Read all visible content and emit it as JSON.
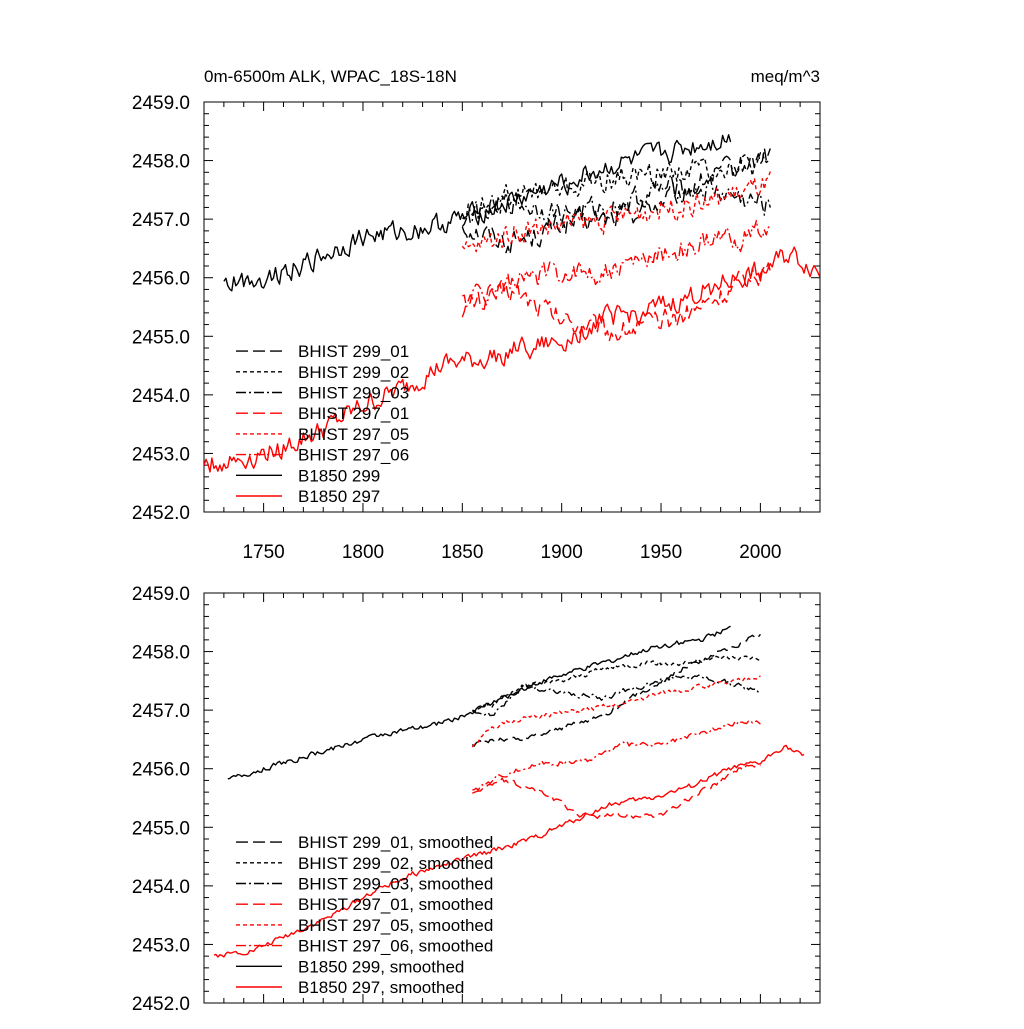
{
  "chart_data": [
    {
      "type": "line",
      "title": "0m-6500m ALK, WPAC_18S-18N",
      "units_label": "meq/m^3",
      "xlabel": "",
      "ylabel": "",
      "xlim": [
        1720,
        2030
      ],
      "ylim": [
        2452.0,
        2459.0
      ],
      "xticks": [
        "1750",
        "1800",
        "1850",
        "1900",
        "1950",
        "2000"
      ],
      "xtick_values": [
        1750,
        1800,
        1850,
        1900,
        1950,
        2000
      ],
      "yticks": [
        "2452.0",
        "2453.0",
        "2454.0",
        "2455.0",
        "2456.0",
        "2457.0",
        "2458.0",
        "2459.0"
      ],
      "ytick_values": [
        2452,
        2453,
        2454,
        2455,
        2456,
        2457,
        2458,
        2459
      ],
      "legend_placement": "bottom-left",
      "series": [
        {
          "name": "BHIST 299_01",
          "color": "#000000",
          "dash": "long-dash",
          "noise": 0.18,
          "x": [
            1850,
            1875,
            1900,
            1925,
            1950,
            1975,
            2005
          ],
          "y": [
            2456.9,
            2456.6,
            2456.9,
            2457.0,
            2457.3,
            2457.7,
            2458.1
          ]
        },
        {
          "name": "BHIST 299_02",
          "color": "#000000",
          "dash": "short-dash",
          "noise": 0.18,
          "x": [
            1850,
            1875,
            1900,
            1925,
            1950,
            1975,
            2005
          ],
          "y": [
            2457.1,
            2457.4,
            2457.5,
            2457.7,
            2457.8,
            2457.9,
            2457.9
          ]
        },
        {
          "name": "BHIST 299_03",
          "color": "#000000",
          "dash": "dash-dot",
          "noise": 0.18,
          "x": [
            1850,
            1875,
            1900,
            1925,
            1950,
            1975,
            2005
          ],
          "y": [
            2457.0,
            2457.3,
            2457.1,
            2457.2,
            2457.5,
            2457.5,
            2457.2
          ]
        },
        {
          "name": "BHIST 297_01",
          "color": "#ff0000",
          "dash": "long-dash",
          "noise": 0.18,
          "x": [
            1850,
            1875,
            1900,
            1925,
            1950,
            1975,
            2005
          ],
          "y": [
            2455.5,
            2455.8,
            2455.3,
            2455.1,
            2455.2,
            2455.6,
            2456.2
          ]
        },
        {
          "name": "BHIST 297_05",
          "color": "#ff0000",
          "dash": "short-dash",
          "noise": 0.18,
          "x": [
            1850,
            1875,
            1900,
            1925,
            1950,
            1975,
            2005
          ],
          "y": [
            2456.4,
            2456.8,
            2456.9,
            2457.0,
            2457.2,
            2457.3,
            2457.6
          ]
        },
        {
          "name": "BHIST 297_06",
          "color": "#ff0000",
          "dash": "dash-dot",
          "noise": 0.18,
          "x": [
            1850,
            1875,
            1900,
            1925,
            1950,
            1975,
            2005
          ],
          "y": [
            2455.6,
            2455.9,
            2456.1,
            2456.1,
            2456.4,
            2456.6,
            2456.8
          ]
        },
        {
          "name": "B1850 299",
          "color": "#000000",
          "dash": "solid",
          "noise": 0.16,
          "x": [
            1730,
            1750,
            1775,
            1800,
            1825,
            1850,
            1875,
            1900,
            1925,
            1950,
            1985
          ],
          "y": [
            2455.9,
            2456.0,
            2456.3,
            2456.7,
            2456.8,
            2457.0,
            2457.3,
            2457.6,
            2457.9,
            2458.1,
            2458.4
          ]
        },
        {
          "name": "B1850 297",
          "color": "#ff0000",
          "dash": "solid",
          "noise": 0.16,
          "x": [
            1720,
            1740,
            1760,
            1780,
            1800,
            1820,
            1840,
            1860,
            1880,
            1900,
            1920,
            1940,
            1960,
            1980,
            2000,
            2015,
            2030
          ],
          "y": [
            2452.8,
            2452.9,
            2453.1,
            2453.4,
            2453.8,
            2454.1,
            2454.5,
            2454.6,
            2454.8,
            2454.9,
            2455.3,
            2455.4,
            2455.6,
            2455.9,
            2456.1,
            2456.4,
            2456.1
          ]
        }
      ]
    },
    {
      "type": "line",
      "title": "",
      "xlabel": "",
      "ylabel": "",
      "xlim": [
        1720,
        2030
      ],
      "ylim": [
        2452.0,
        2459.0
      ],
      "xtick_values": [
        1750,
        1800,
        1850,
        1900,
        1950,
        2000
      ],
      "yticks": [
        "2452.0",
        "2453.0",
        "2454.0",
        "2455.0",
        "2456.0",
        "2457.0",
        "2458.0",
        "2459.0"
      ],
      "ytick_values": [
        2452,
        2453,
        2454,
        2455,
        2456,
        2457,
        2458,
        2459
      ],
      "legend_placement": "bottom-left",
      "series": [
        {
          "name": "BHIST 299_01, smoothed",
          "color": "#000000",
          "dash": "long-dash",
          "noise": 0.04,
          "x": [
            1855,
            1865,
            1880,
            1900,
            1920,
            1940,
            1960,
            1980,
            2000
          ],
          "y": [
            2456.4,
            2456.5,
            2456.5,
            2456.7,
            2456.9,
            2457.3,
            2457.7,
            2458.0,
            2458.3
          ]
        },
        {
          "name": "BHIST 299_02, smoothed",
          "color": "#000000",
          "dash": "short-dash",
          "noise": 0.04,
          "x": [
            1855,
            1865,
            1880,
            1900,
            1920,
            1940,
            1960,
            1980,
            2000
          ],
          "y": [
            2457.0,
            2457.1,
            2457.4,
            2457.5,
            2457.7,
            2457.8,
            2457.8,
            2457.9,
            2457.9
          ]
        },
        {
          "name": "BHIST 299_03, smoothed",
          "color": "#000000",
          "dash": "dash-dot",
          "noise": 0.04,
          "x": [
            1855,
            1865,
            1880,
            1900,
            1920,
            1940,
            1960,
            1980,
            2000
          ],
          "y": [
            2457.0,
            2456.9,
            2457.4,
            2457.3,
            2457.2,
            2457.4,
            2457.6,
            2457.5,
            2457.3
          ]
        },
        {
          "name": "BHIST 297_01, smoothed",
          "color": "#ff0000",
          "dash": "long-dash",
          "noise": 0.04,
          "x": [
            1855,
            1870,
            1890,
            1910,
            1930,
            1950,
            1970,
            1990,
            2000
          ],
          "y": [
            2455.6,
            2455.8,
            2455.6,
            2455.2,
            2455.2,
            2455.2,
            2455.6,
            2456.0,
            2456.1
          ]
        },
        {
          "name": "BHIST 297_05, smoothed",
          "color": "#ff0000",
          "dash": "short-dash",
          "noise": 0.04,
          "x": [
            1855,
            1870,
            1890,
            1910,
            1930,
            1950,
            1970,
            1990,
            2000
          ],
          "y": [
            2456.4,
            2456.8,
            2456.9,
            2457.0,
            2457.1,
            2457.3,
            2457.4,
            2457.5,
            2457.6
          ]
        },
        {
          "name": "BHIST 297_06, smoothed",
          "color": "#ff0000",
          "dash": "dash-dot",
          "noise": 0.04,
          "x": [
            1855,
            1870,
            1890,
            1910,
            1930,
            1950,
            1970,
            1990,
            2000
          ],
          "y": [
            2455.6,
            2455.9,
            2456.1,
            2456.1,
            2456.4,
            2456.4,
            2456.6,
            2456.8,
            2456.8
          ]
        },
        {
          "name": "B1850 299, smoothed",
          "color": "#000000",
          "dash": "solid",
          "noise": 0.04,
          "x": [
            1732,
            1750,
            1770,
            1790,
            1810,
            1830,
            1850,
            1870,
            1890,
            1910,
            1930,
            1950,
            1970,
            1985
          ],
          "y": [
            2455.8,
            2456.0,
            2456.2,
            2456.4,
            2456.6,
            2456.7,
            2456.9,
            2457.2,
            2457.5,
            2457.7,
            2457.9,
            2458.1,
            2458.2,
            2458.4
          ]
        },
        {
          "name": "B1850 297, smoothed",
          "color": "#ff0000",
          "dash": "solid",
          "noise": 0.04,
          "x": [
            1725,
            1745,
            1765,
            1785,
            1805,
            1825,
            1845,
            1865,
            1885,
            1905,
            1925,
            1945,
            1965,
            1985,
            2000,
            2012,
            2022
          ],
          "y": [
            2452.8,
            2452.9,
            2453.2,
            2453.5,
            2453.9,
            2454.2,
            2454.4,
            2454.6,
            2454.8,
            2455.1,
            2455.4,
            2455.5,
            2455.7,
            2456.0,
            2456.1,
            2456.4,
            2456.2
          ]
        }
      ]
    }
  ]
}
